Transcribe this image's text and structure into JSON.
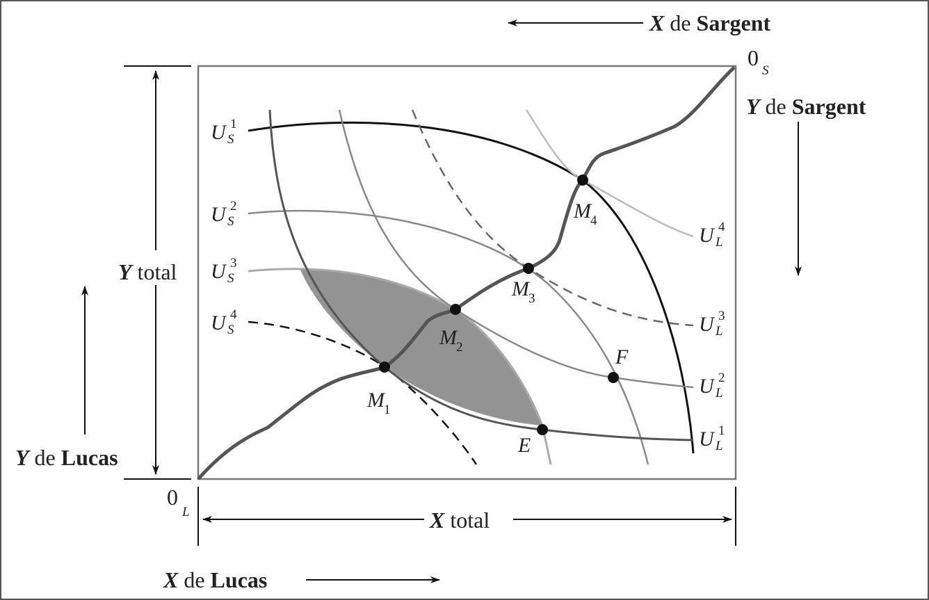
{
  "axes_labels": {
    "x_sargent": {
      "variable": "X",
      "preposition": "de",
      "person": "Sargent"
    },
    "y_sargent": {
      "variable": "Y",
      "preposition": "de",
      "person": "Sargent"
    },
    "y_lucas": {
      "variable": "Y",
      "preposition": "de",
      "person": "Lucas"
    },
    "x_lucas": {
      "variable": "X",
      "preposition": "de",
      "person": "Lucas"
    },
    "x_total": {
      "variable": "X",
      "word": "total"
    },
    "y_total": {
      "variable": "Y",
      "word": "total"
    },
    "origin_sargent": {
      "base": "0",
      "sub": "S"
    },
    "origin_lucas": {
      "base": "0",
      "sub": "L"
    }
  },
  "sargent_curves": [
    {
      "base": "U",
      "sub": "S",
      "sup": "1"
    },
    {
      "base": "U",
      "sub": "S",
      "sup": "2"
    },
    {
      "base": "U",
      "sub": "S",
      "sup": "3"
    },
    {
      "base": "U",
      "sub": "S",
      "sup": "4"
    }
  ],
  "lucas_curves": [
    {
      "base": "U",
      "sub": "L",
      "sup": "4"
    },
    {
      "base": "U",
      "sub": "L",
      "sup": "3"
    },
    {
      "base": "U",
      "sub": "L",
      "sup": "2"
    },
    {
      "base": "U",
      "sub": "L",
      "sup": "1"
    }
  ],
  "points": [
    {
      "base": "M",
      "sub": "1"
    },
    {
      "base": "M",
      "sub": "2"
    },
    {
      "base": "M",
      "sub": "3"
    },
    {
      "base": "M",
      "sub": "4"
    },
    {
      "base": "E"
    },
    {
      "base": "F"
    }
  ]
}
